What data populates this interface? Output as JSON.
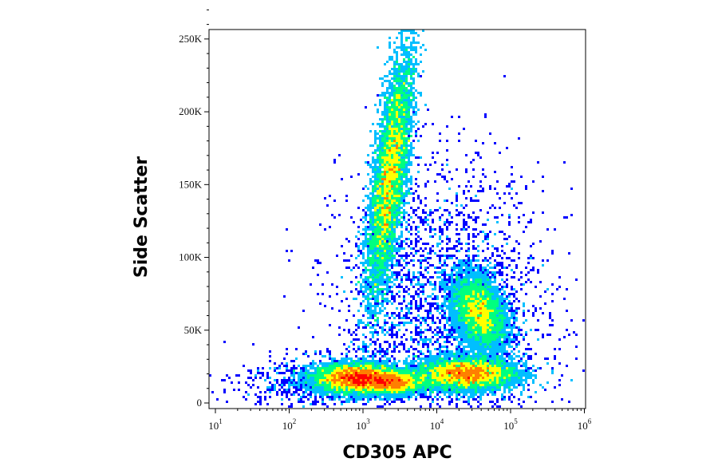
{
  "chart_data": {
    "type": "scatter",
    "title": "",
    "xlabel": "CD305 APC",
    "ylabel": "Side Scatter",
    "x_scale": "log",
    "xlim": [
      10,
      1000000
    ],
    "ylim": [
      0,
      262144
    ],
    "grid": false,
    "legend": "none",
    "x_ticks": [
      {
        "base": "10",
        "exp": "1",
        "value": 10
      },
      {
        "base": "10",
        "exp": "2",
        "value": 100
      },
      {
        "base": "10",
        "exp": "3",
        "value": 1000
      },
      {
        "base": "10",
        "exp": "4",
        "value": 10000
      },
      {
        "base": "10",
        "exp": "5",
        "value": 100000
      },
      {
        "base": "10",
        "exp": "6",
        "value": 1000000
      }
    ],
    "y_ticks": [
      {
        "label": "0",
        "value": 0
      },
      {
        "label": "50K",
        "value": 50000
      },
      {
        "label": "100K",
        "value": 100000
      },
      {
        "label": "150K",
        "value": 150000
      },
      {
        "label": "200K",
        "value": 200000
      },
      {
        "label": "250K",
        "value": 250000
      }
    ],
    "density_colormap": [
      "#0000ff",
      "#00bfff",
      "#00ff80",
      "#ffff00",
      "#ff7f00",
      "#ff0000"
    ],
    "populations": [
      {
        "x_center": 800,
        "y_center": 17000,
        "x_spread_decades": 0.28,
        "y_spread": 5000,
        "tilt": 0,
        "weight": 0.21
      },
      {
        "x_center": 25000,
        "y_center": 20000,
        "x_spread_decades": 0.33,
        "y_spread": 5500,
        "tilt": 0,
        "weight": 0.2
      },
      {
        "x_center": 2500,
        "y_center": 14000,
        "x_spread_decades": 0.22,
        "y_spread": 4000,
        "tilt": 0,
        "weight": 0.09
      },
      {
        "x_center": 2300,
        "y_center": 155000,
        "x_spread_decades": 0.11,
        "y_spread": 42000,
        "tilt": 0.25,
        "weight": 0.3
      },
      {
        "x_center": 38000,
        "y_center": 62000,
        "x_spread_decades": 0.17,
        "y_spread": 13000,
        "tilt": -0.5,
        "weight": 0.14
      },
      {
        "x_center": 12000,
        "y_center": 60000,
        "x_spread_decades": 0.7,
        "y_spread": 50000,
        "tilt": 0,
        "weight": 0.05
      },
      {
        "x_center": 200,
        "y_center": 14000,
        "x_spread_decades": 0.5,
        "y_spread": 9000,
        "tilt": 0,
        "weight": 0.01
      }
    ]
  }
}
